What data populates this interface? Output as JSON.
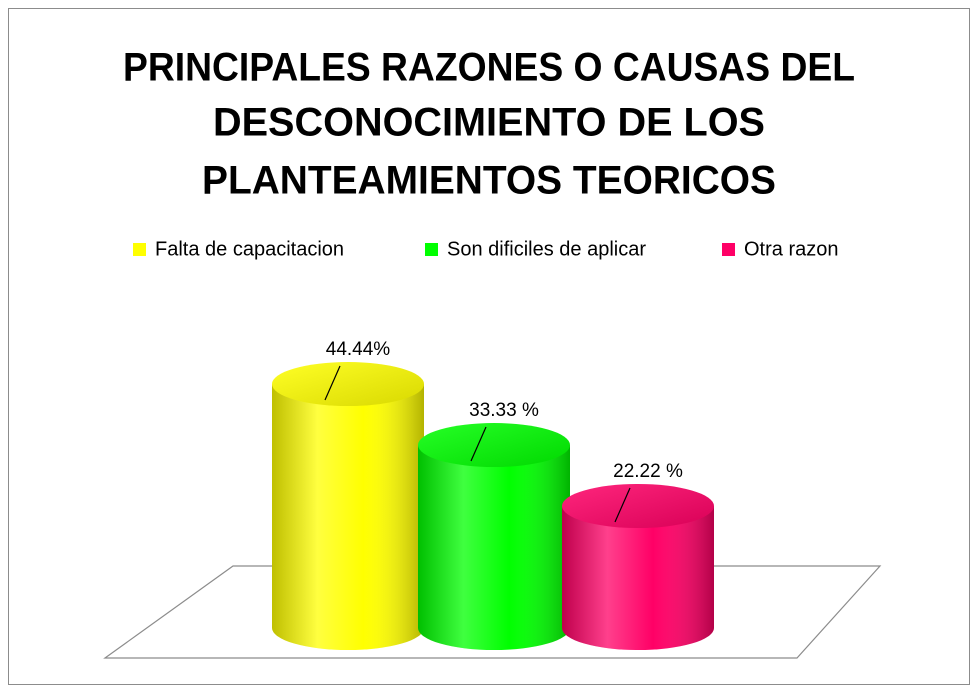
{
  "chart_data": {
    "type": "bar",
    "title": [
      "PRINCIPALES RAZONES O CAUSAS DEL",
      "DESCONOCIMIENTO DE LOS",
      "PLANTEAMIENTOS TEORICOS"
    ],
    "series": [
      {
        "name": "Falta de capacitacion",
        "color": "#ffff00",
        "values": [
          44.44
        ],
        "value_labels": [
          "44.44%"
        ]
      },
      {
        "name": "Son dificiles de aplicar",
        "color": "#00ff00",
        "values": [
          33.33
        ],
        "value_labels": [
          "33.33 %"
        ]
      },
      {
        "name": "Otra razon",
        "color": "#ff0066",
        "values": [
          22.22
        ],
        "value_labels": [
          "22.22 %"
        ]
      }
    ],
    "legend": "top"
  }
}
